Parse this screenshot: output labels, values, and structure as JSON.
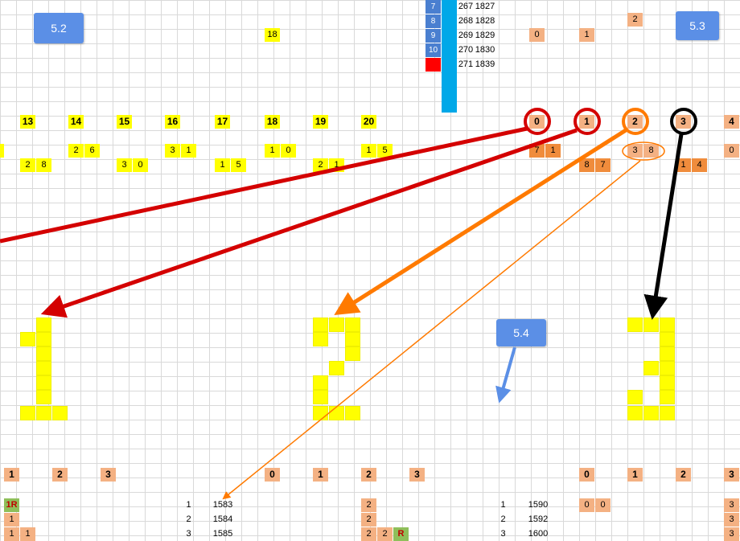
{
  "notes": {
    "n52": "5.2",
    "n53": "5.3",
    "n54": "5.4"
  },
  "blue_table": [
    {
      "k": "7",
      "a": "267",
      "b": "1827"
    },
    {
      "k": "8",
      "a": "268",
      "b": "1828"
    },
    {
      "k": "9",
      "a": "269",
      "b": "1829"
    },
    {
      "k": "10",
      "a": "270",
      "b": "1830"
    },
    {
      "k": "",
      "a": "271",
      "b": "1839"
    }
  ],
  "top_values": {
    "two": "2",
    "zero": "0",
    "one": "1",
    "eighteen": "18"
  },
  "header_numbers": [
    "13",
    "14",
    "15",
    "16",
    "17",
    "18",
    "19",
    "20"
  ],
  "circled": [
    "0",
    "1",
    "2",
    "3"
  ],
  "four": "4",
  "pairs_row1": [
    {
      "a": "2",
      "b": "6"
    },
    {
      "a": "3",
      "b": "1"
    },
    {
      "a": "1",
      "b": "0"
    },
    {
      "a": "1",
      "b": "5"
    }
  ],
  "pairs_row2": [
    {
      "a": "2",
      "b": "8"
    },
    {
      "a": "3",
      "b": "0"
    },
    {
      "a": "1",
      "b": "5"
    },
    {
      "a": "2",
      "b": "1"
    }
  ],
  "orange_pairs": {
    "p71": {
      "a": "7",
      "b": "1"
    },
    "p38": {
      "a": "3",
      "b": "8"
    },
    "p87": {
      "a": "8",
      "b": "7"
    },
    "p14": {
      "a": "1",
      "b": "4"
    },
    "zero_right": "0"
  },
  "bottom_row": [
    "1",
    "2",
    "3",
    "0",
    "1",
    "2",
    "3",
    "0",
    "1",
    "2",
    "3"
  ],
  "lower_rows": {
    "r1": {
      "tag": "1R",
      "n1": "1",
      "v1": "1583",
      "c1": "2",
      "n2": "1",
      "v2": "1590",
      "d1": "0",
      "d2": "0",
      "e": "3"
    },
    "r2": {
      "tag": "1",
      "n1": "2",
      "v1": "1584",
      "c1": "2",
      "n2": "2",
      "v2": "1592",
      "e": "3"
    },
    "r3": {
      "tag": "1",
      "tag2": "1",
      "n1": "3",
      "v1": "1585",
      "c1": "2",
      "c2": "2",
      "g": "R",
      "n2": "3",
      "v2": "1600",
      "e": "3"
    }
  },
  "colors": {
    "red": "#d40000",
    "orange": "#ff7a00",
    "black": "#000000",
    "yellow": "#ffff00",
    "salmon": "#f4b183"
  }
}
